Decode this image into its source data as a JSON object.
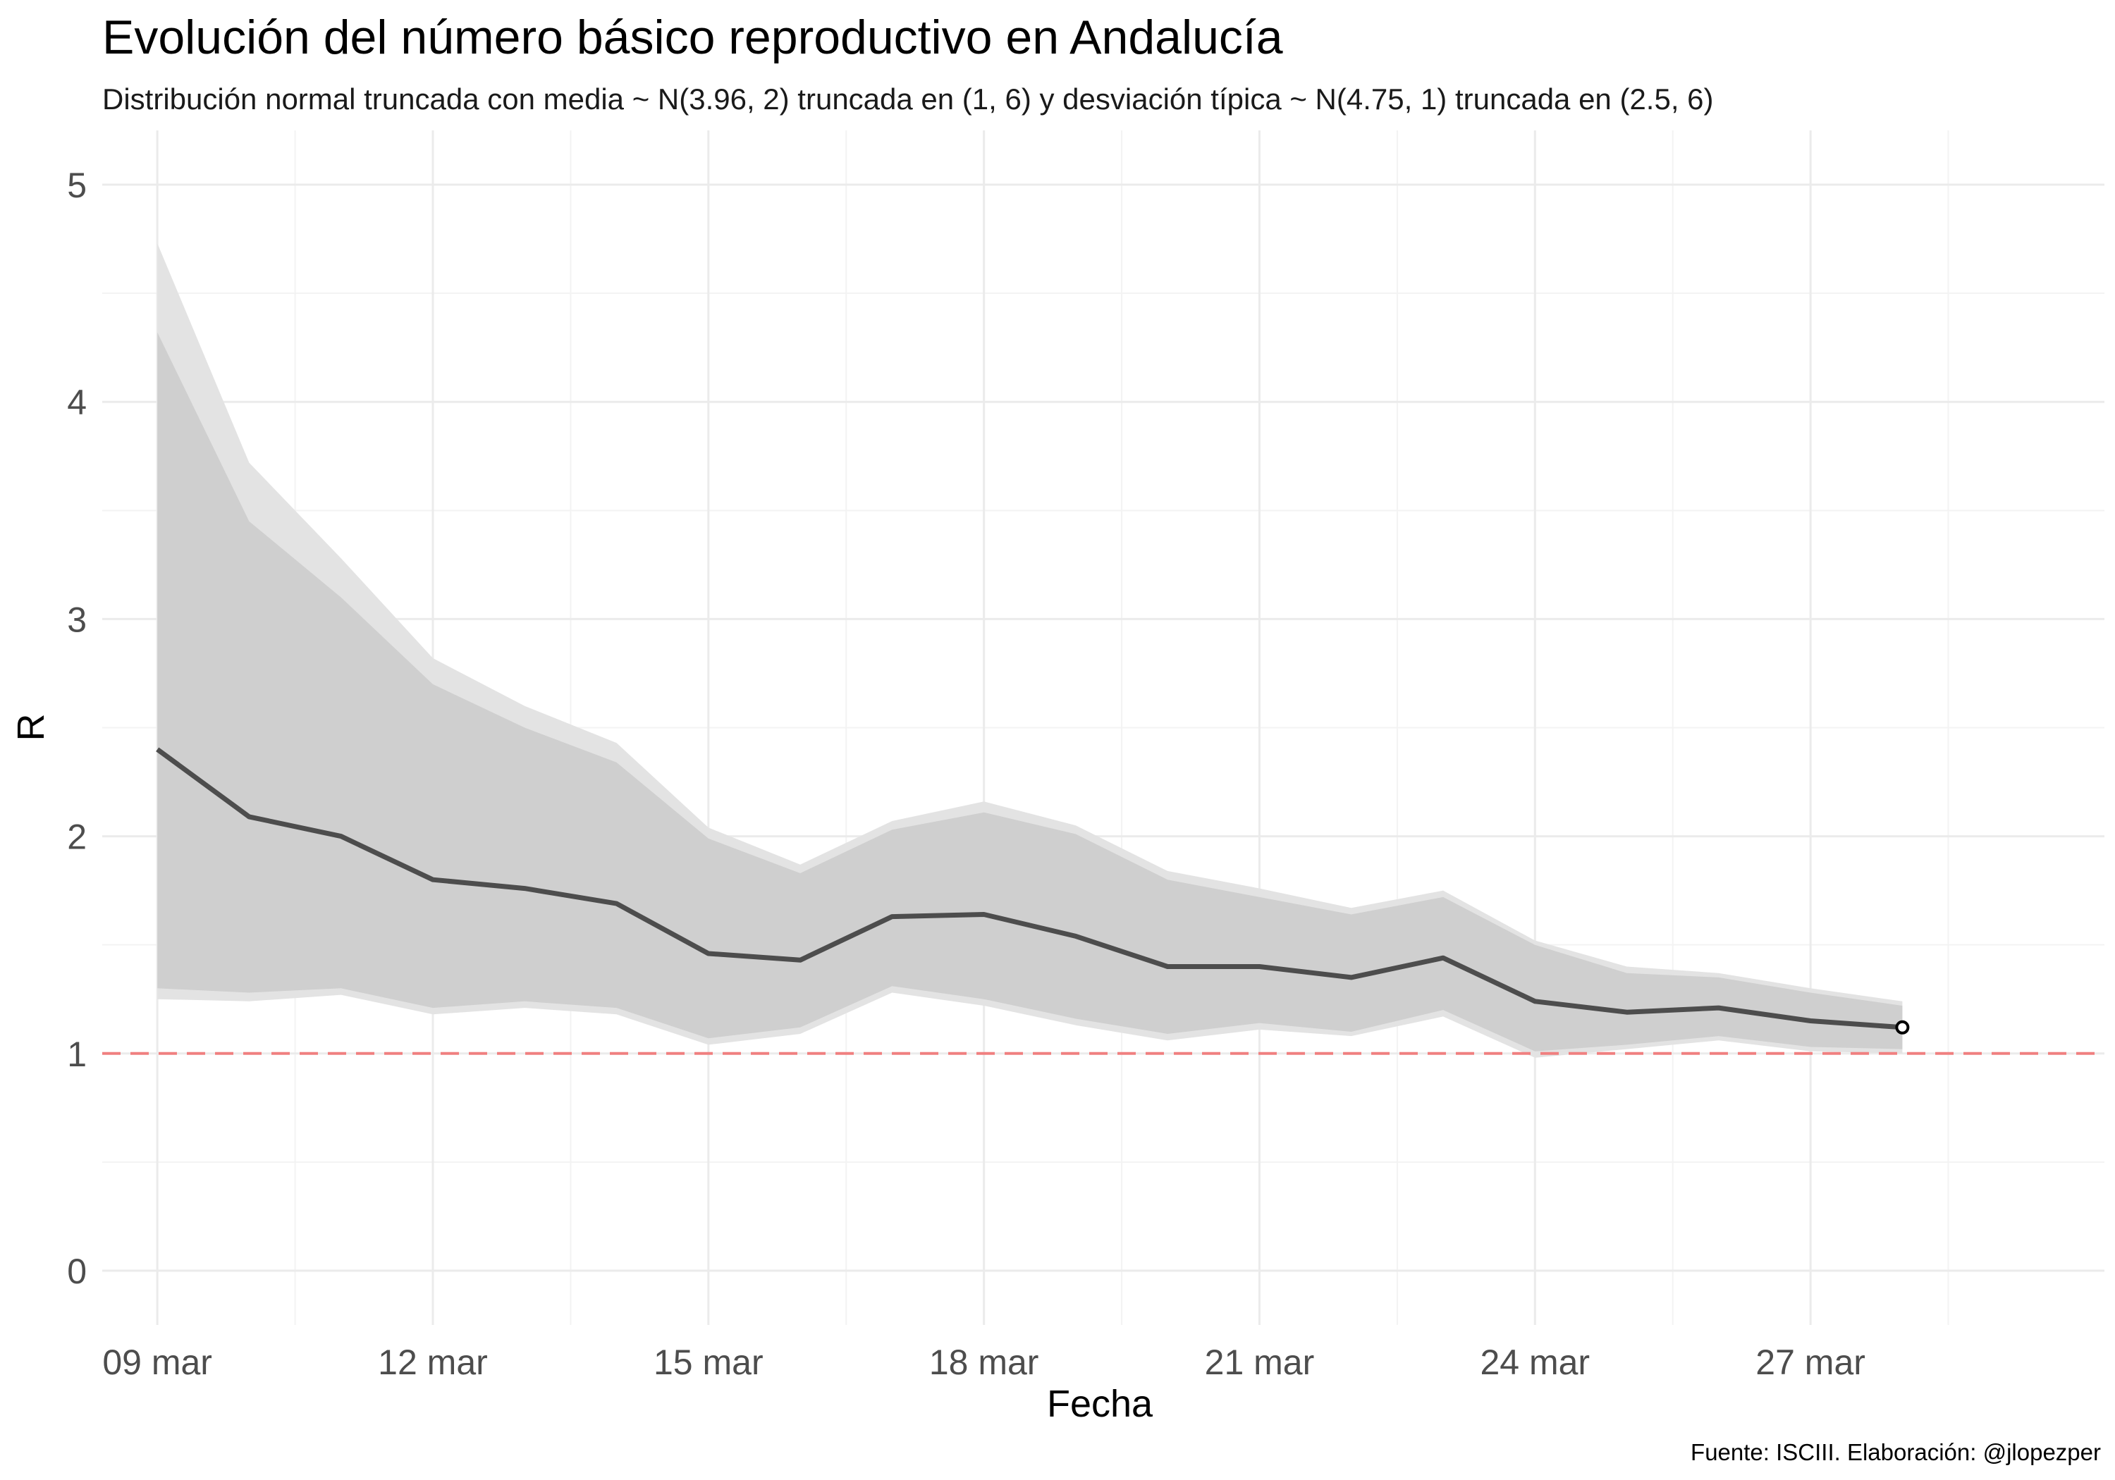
{
  "title": "Evolución del número básico reproductivo en Andalucía",
  "subtitle": "Distribución normal truncada con media ~ N(3.96, 2) truncada en (1, 6) y desviación típica ~ N(4.75, 1) truncada en (2.5, 6)",
  "caption": "Fuente: ISCIII. Elaboración: @jlopezper",
  "colors": {
    "background": "#ffffff",
    "grid_major": "#ebebeb",
    "grid_minor": "#f3f3f3",
    "band_outer": "#e3e3e3",
    "band_inner": "#cfcfcf",
    "line": "#4d4d4d",
    "reference": "#f08080"
  },
  "chart_data": {
    "type": "line",
    "title": "Evolución del número básico reproductivo en Andalucía",
    "xlabel": "Fecha",
    "ylabel": "R",
    "x": [
      "09 mar",
      "10 mar",
      "11 mar",
      "12 mar",
      "13 mar",
      "14 mar",
      "15 mar",
      "16 mar",
      "17 mar",
      "18 mar",
      "19 mar",
      "20 mar",
      "21 mar",
      "22 mar",
      "23 mar",
      "24 mar",
      "25 mar",
      "26 mar",
      "27 mar",
      "28 mar"
    ],
    "x_ticks": [
      "09 mar",
      "12 mar",
      "15 mar",
      "18 mar",
      "21 mar",
      "24 mar",
      "27 mar"
    ],
    "ylim": [
      -0.25,
      5.25
    ],
    "y_ticks": [
      0,
      1,
      2,
      3,
      4,
      5
    ],
    "grid": true,
    "legend": "none",
    "reference_line": {
      "y": 1,
      "style": "dashed"
    },
    "series": [
      {
        "values": [
          2.4,
          2.09,
          2.0,
          1.8,
          1.76,
          1.69,
          1.46,
          1.43,
          1.63,
          1.64,
          1.54,
          1.4,
          1.4,
          1.35,
          1.44,
          1.24,
          1.19,
          1.21,
          1.15,
          1.12
        ]
      }
    ],
    "band_outer": {
      "lower": [
        1.25,
        1.24,
        1.27,
        1.18,
        1.21,
        1.18,
        1.04,
        1.09,
        1.28,
        1.22,
        1.13,
        1.06,
        1.11,
        1.08,
        1.17,
        0.98,
        1.02,
        1.06,
        1.01,
        1.0
      ],
      "upper": [
        4.73,
        3.72,
        3.28,
        2.82,
        2.6,
        2.43,
        2.04,
        1.87,
        2.07,
        2.16,
        2.05,
        1.84,
        1.76,
        1.67,
        1.75,
        1.52,
        1.4,
        1.37,
        1.3,
        1.24
      ]
    },
    "band_inner": {
      "lower": [
        1.3,
        1.28,
        1.3,
        1.21,
        1.24,
        1.21,
        1.07,
        1.12,
        1.31,
        1.25,
        1.16,
        1.09,
        1.14,
        1.1,
        1.2,
        1.01,
        1.04,
        1.08,
        1.03,
        1.02
      ],
      "upper": [
        4.32,
        3.45,
        3.1,
        2.7,
        2.5,
        2.34,
        1.99,
        1.83,
        2.03,
        2.11,
        2.01,
        1.8,
        1.72,
        1.64,
        1.72,
        1.5,
        1.37,
        1.35,
        1.28,
        1.22
      ]
    }
  }
}
